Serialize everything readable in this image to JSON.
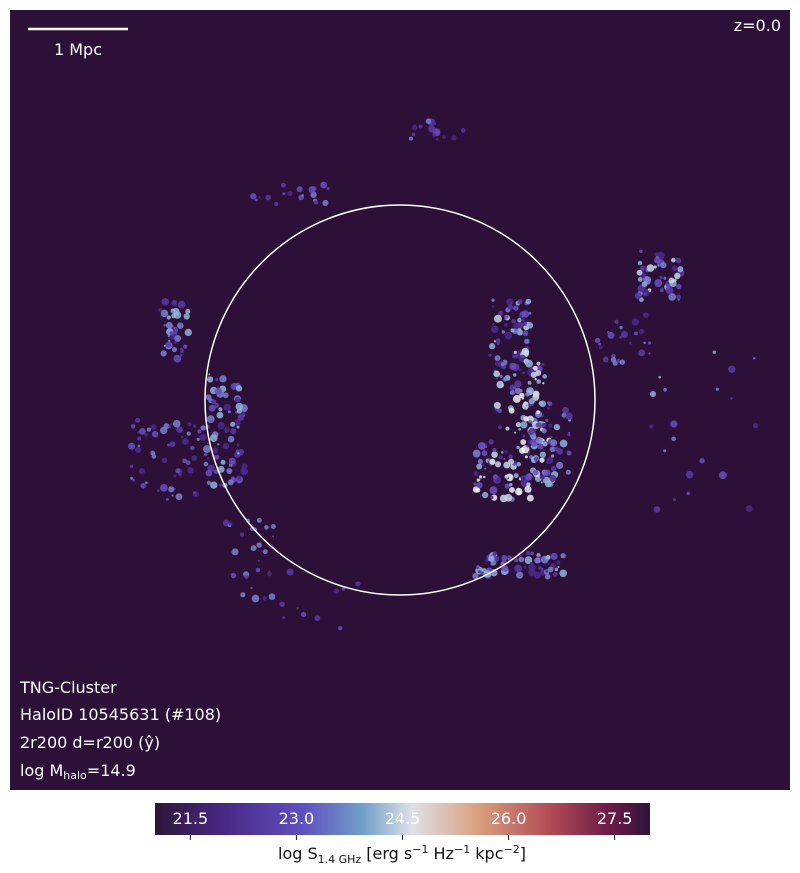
{
  "image": {
    "redshift": "z=0.0",
    "scale_bar": "1 Mpc",
    "info": [
      "TNG-Cluster",
      "HaloID 10545631 (#108)",
      "2r200 d=r200 (ŷ)"
    ],
    "mass_label": {
      "prefix": "log M",
      "sub": "halo",
      "suffix": "=14.9"
    }
  },
  "colorbar": {
    "range": [
      21,
      28
    ],
    "ticks": [
      21.5,
      {
        "value": 23,
        "label": "23.0"
      },
      24.5,
      {
        "value": 26,
        "label": "26.0"
      },
      27.5
    ],
    "label_parts": [
      {
        "text": "log S"
      },
      {
        "text": "1.4 GHz",
        "shift": "sub"
      },
      {
        "text": " [erg s"
      },
      {
        "text": "−1",
        "shift": "sup"
      },
      {
        "text": " Hz"
      },
      {
        "text": "−1",
        "shift": "sup"
      },
      {
        "text": " kpc"
      },
      {
        "text": "−2",
        "shift": "sup"
      },
      {
        "text": "]"
      }
    ]
  }
}
